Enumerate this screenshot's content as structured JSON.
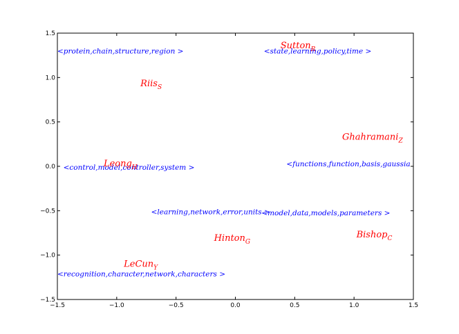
{
  "chart_data": {
    "type": "scatter",
    "title": "",
    "xlabel": "",
    "ylabel": "",
    "xlim": [
      -1.5,
      1.5
    ],
    "ylim": [
      -1.5,
      1.5
    ],
    "grid": false,
    "x_ticks": [
      "−1.5",
      "−1.0",
      "−0.5",
      "0.0",
      "0.5",
      "1.0",
      "1.5"
    ],
    "x_tick_values": [
      -1.5,
      -1.0,
      -0.5,
      0.0,
      0.5,
      1.0,
      1.5
    ],
    "y_ticks": [
      "1.5",
      "1.0",
      "0.5",
      "0.0",
      "−0.5",
      "−1.0",
      "−1.5"
    ],
    "y_tick_values": [
      1.5,
      1.0,
      0.5,
      0.0,
      -0.5,
      -1.0,
      -1.5
    ],
    "colors": {
      "author": "#ff0000",
      "topic": "#0000ff"
    },
    "authors": [
      {
        "name": "Sutton",
        "sub": "R",
        "x": 0.38,
        "y": 1.33
      },
      {
        "name": "Riis",
        "sub": "S",
        "x": -0.8,
        "y": 0.9
      },
      {
        "name": "Ghahramani",
        "sub": "Z",
        "x": 0.9,
        "y": 0.3
      },
      {
        "name": "Leong",
        "sub": "H",
        "x": -1.11,
        "y": 0.0
      },
      {
        "name": "Hinton",
        "sub": "G",
        "x": -0.18,
        "y": -0.84
      },
      {
        "name": "Bishop",
        "sub": "C",
        "x": 1.02,
        "y": -0.8
      },
      {
        "name": "LeCun",
        "sub": "Y",
        "x": -0.94,
        "y": -1.13
      }
    ],
    "topics": [
      {
        "label": "<protein,chain,structure,region >",
        "x": -1.5,
        "y": 1.27
      },
      {
        "label": "<state,learning,policy,time >",
        "x": 0.24,
        "y": 1.27
      },
      {
        "label": "<control,model,controller,system >",
        "x": -1.45,
        "y": -0.04
      },
      {
        "label": "<functions,function,basis,gaussia",
        "x": 0.43,
        "y": 0.0
      },
      {
        "label": "<learning,network,error,units >",
        "x": -0.71,
        "y": -0.54
      },
      {
        "label": "<model,data,models,parameters >",
        "x": 0.22,
        "y": -0.55
      },
      {
        "label": "<recognition,character,network,characters >",
        "x": -1.5,
        "y": -1.24
      }
    ]
  }
}
